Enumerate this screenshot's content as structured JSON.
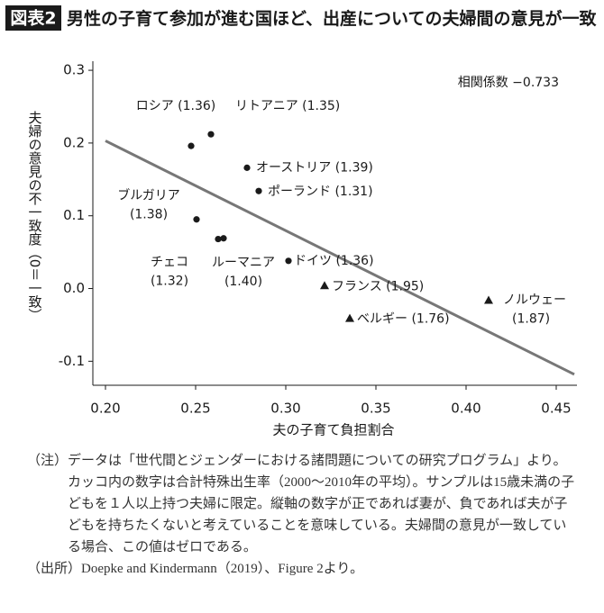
{
  "badge": "図表2",
  "chart_data": {
    "type": "scatter",
    "title": "男性の子育て参加が進む国ほど、出産についての夫婦間の意見が一致",
    "xlabel": "夫の子育て負担割合",
    "ylabel": "夫婦の意見の不一致度（0＝一致）",
    "annotation": "相関係数 −0.733",
    "xlim": [
      0.193,
      0.46
    ],
    "ylim": [
      -0.133,
      0.31
    ],
    "xticks": [
      {
        "value": 0.2,
        "label": "0.20"
      },
      {
        "value": 0.25,
        "label": "0.25"
      },
      {
        "value": 0.3,
        "label": "0.30"
      },
      {
        "value": 0.35,
        "label": "0.35"
      },
      {
        "value": 0.4,
        "label": "0.40"
      },
      {
        "value": 0.45,
        "label": "0.45"
      }
    ],
    "yticks": [
      0.3,
      0.2,
      0.1,
      {
        "value": 0,
        "label": "0.0"
      },
      -0.1
    ],
    "series": [
      {
        "marker": "circle",
        "color": "#1a1a1a",
        "x": [
          0.2475,
          0.2585,
          0.2785,
          0.285,
          0.2505,
          0.2625,
          0.2655,
          0.3015
        ],
        "values": [
          0.196,
          0.212,
          0.166,
          0.134,
          0.095,
          0.068,
          0.069,
          0.038
        ],
        "point_labels": [
          [
            "ロシア (1.36)"
          ],
          [
            "リトアニア (1.35)"
          ],
          [
            "オーストリア (1.39)"
          ],
          [
            "ポーランド (1.31)"
          ],
          [
            "ブルガリア",
            "(1.38)"
          ],
          [
            "チェコ",
            "(1.32)"
          ],
          [
            "ルーマニア",
            "(1.40)"
          ],
          [
            "ドイツ (1.36)"
          ]
        ]
      },
      {
        "marker": "triangle",
        "color": "#1a1a1a",
        "x": [
          0.3215,
          0.3355,
          0.4125
        ],
        "values": [
          0.004,
          -0.041,
          -0.016
        ],
        "point_labels": [
          [
            "フランス (1.95)"
          ],
          [
            "ベルギー (1.76)"
          ],
          [
            "ノルウェー",
            "(1.87)"
          ]
        ]
      }
    ],
    "trend": {
      "color": "#777777",
      "x": [
        0.2,
        0.46
      ],
      "values": [
        0.203,
        -0.118
      ]
    }
  },
  "notes": [
    {
      "label": "（注）",
      "text": "データは「世代間とジェンダーにおける諸問題についての研究プログラム」より。カッコ内の数字は合計特殊出生率（2000〜2010年の平均）。サンプルは15歳未満の子どもを１人以上持つ夫婦に限定。縦軸の数字が正であれば妻が、負であれば夫が子どもを持ちたくないと考えていることを意味している。夫婦間の意見が一致している場合、この値はゼロである。"
    },
    {
      "label": "（出所）",
      "text": "Doepke and Kindermann（2019）、Figure 2より。"
    }
  ]
}
